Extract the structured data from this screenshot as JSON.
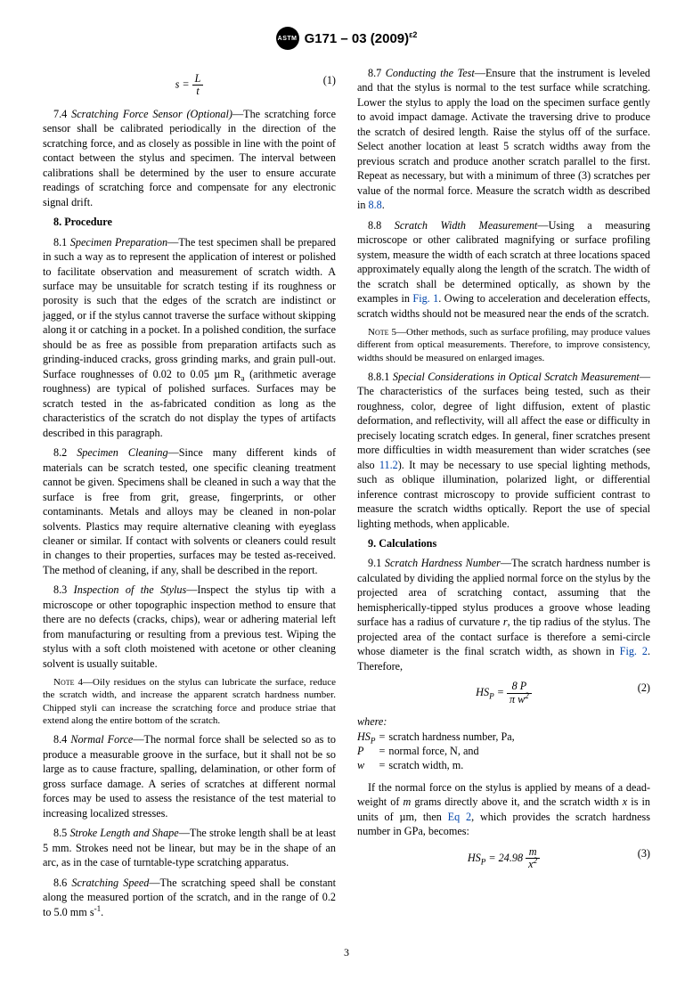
{
  "header": {
    "logo_text": "ASTM",
    "doc_id": "G171 – 03 (2009)",
    "doc_sup": "ε2"
  },
  "left": {
    "eq1": {
      "lhs": "s =",
      "num": "L",
      "den": "t",
      "num_label": "(1)"
    },
    "p74": {
      "num": "7.4",
      "title": "Scratching Force Sensor (Optional)",
      "body": "—The scratching force sensor shall be calibrated periodically in the direction of the scratching force, and as closely as possible in line with the point of contact between the stylus and specimen. The interval between calibrations shall be determined by the user to ensure accurate readings of scratching force and compensate for any electronic signal drift."
    },
    "s8": "8. Procedure",
    "p81": {
      "num": "8.1",
      "title": "Specimen Preparation",
      "body": "—The test specimen shall be prepared in such a way as to represent the application of interest or polished to facilitate observation and measurement of scratch width. A surface may be unsuitable for scratch testing if its roughness or porosity is such that the edges of the scratch are indistinct or jagged, or if the stylus cannot traverse the surface without skipping along it or catching in a pocket. In a polished condition, the surface should be as free as possible from preparation artifacts such as grinding-induced cracks, gross grinding marks, and grain pull-out. Surface roughnesses of 0.02 to 0.05 µm R",
      "sub": "a",
      "body2": " (arithmetic average roughness) are typical of polished surfaces. Surfaces may be scratch tested in the as-fabricated condition as long as the characteristics of the scratch do not display the types of artifacts described in this paragraph."
    },
    "p82": {
      "num": "8.2",
      "title": "Specimen Cleaning",
      "body": "—Since many different kinds of materials can be scratch tested, one specific cleaning treatment cannot be given. Specimens shall be cleaned in such a way that the surface is free from grit, grease, fingerprints, or other contaminants. Metals and alloys may be cleaned in non-polar solvents. Plastics may require alternative cleaning with eyeglass cleaner or similar. If contact with solvents or cleaners could result in changes to their properties, surfaces may be tested as-received. The method of cleaning, if any, shall be described in the report."
    },
    "p83": {
      "num": "8.3",
      "title": "Inspection of the Stylus",
      "body": "—Inspect the stylus tip with a microscope or other topographic inspection method to ensure that there are no defects (cracks, chips), wear or adhering material left from manufacturing or resulting from a previous test. Wiping the stylus with a soft cloth moistened with acetone or other cleaning solvent is usually suitable."
    },
    "note4": {
      "label": "Note 4—",
      "body": "Oily residues on the stylus can lubricate the surface, reduce the scratch width, and increase the apparent scratch hardness number. Chipped styli can increase the scratching force and produce striae that extend along the entire bottom of the scratch."
    },
    "p84": {
      "num": "8.4",
      "title": "Normal Force",
      "body": "—The normal force shall be selected so as to produce a measurable groove in the surface, but it shall not be so large as to cause fracture, spalling, delamination, or other form of gross surface damage. A series of scratches at different normal forces may be used to assess the resistance of the test material to increasing localized stresses."
    },
    "p85": {
      "num": "8.5",
      "title": "Stroke Length and Shape",
      "body": "—The stroke length shall be at least 5 mm. Strokes need not be linear, but may be in the shape of an arc, as in the case of turntable-type scratching apparatus."
    },
    "p86": {
      "num": "8.6",
      "title": "Scratching Speed",
      "body": "—The scratching speed shall be constant along the measured portion of the scratch, and in the range of 0.2 to 5.0 mm s",
      "sup": "-1",
      "body2": "."
    }
  },
  "right": {
    "p87": {
      "num": "8.7",
      "title": "Conducting the Test",
      "body": "—Ensure that the instrument is leveled and that the stylus is normal to the test surface while scratching. Lower the stylus to apply the load on the specimen surface gently to avoid impact damage. Activate the traversing drive to produce the scratch of desired length. Raise the stylus off of the surface. Select another location at least 5 scratch widths away from the previous scratch and produce another scratch parallel to the first. Repeat as necessary, but with a minimum of three (3) scratches per value of the normal force. Measure the scratch width as described in ",
      "link": "8.8",
      "body2": "."
    },
    "p88": {
      "num": "8.8",
      "title": "Scratch Width Measurement",
      "body": "—Using a measuring microscope or other calibrated magnifying or surface profiling system, measure the width of each scratch at three locations spaced approximately equally along the length of the scratch. The width of the scratch shall be determined optically, as shown by the examples in ",
      "link": "Fig. 1",
      "body2": ". Owing to acceleration and deceleration effects, scratch widths should not be measured near the ends of the scratch."
    },
    "note5": {
      "label": "Note 5—",
      "body": "Other methods, such as surface profiling, may produce values different from optical measurements. Therefore, to improve consistency, widths should be measured on enlarged images."
    },
    "p881": {
      "num": "8.8.1",
      "title": "Special Considerations in Optical Scratch Measurement",
      "body": "—The characteristics of the surfaces being tested, such as their roughness, color, degree of light diffusion, extent of plastic deformation, and reflectivity, will all affect the ease or difficulty in precisely locating scratch edges. In general, finer scratches present more difficulties in width measurement than wider scratches (see also ",
      "link": "11.2",
      "body2": "). It may be necessary to use special lighting methods, such as oblique illumination, polarized light, or differential inference contrast microscopy to provide sufficient contrast to measure the scratch widths optically. Report the use of special lighting methods, when applicable."
    },
    "s9": "9. Calculations",
    "p91": {
      "num": "9.1",
      "title": "Scratch Hardness Number",
      "body": "—The scratch hardness number is calculated by dividing the applied normal force on the stylus by the projected area of scratching contact, assuming that the hemispherically-tipped stylus produces a groove whose leading surface has a radius of curvature ",
      "ital": "r",
      "body2": ", the tip radius of the stylus. The projected area of the contact surface is therefore a semi-circle whose diameter is the final scratch width, as shown in ",
      "link": "Fig. 2",
      "body3": ". Therefore,"
    },
    "eq2": {
      "lhs": "HS",
      "sub": "P",
      "eq": " = ",
      "num": "8 P",
      "den": "π w",
      "densup": "2",
      "num_label": "(2)"
    },
    "where": {
      "label": "where:",
      "rows": [
        {
          "sym": "HS",
          "sub": "P",
          "def": "scratch hardness number, Pa,"
        },
        {
          "sym": "P",
          "def": "normal force, N, and"
        },
        {
          "sym": "w",
          "def": "scratch width, m."
        }
      ]
    },
    "p_after": {
      "body1": "If the normal force on the stylus is applied by means of a dead-weight of ",
      "m": "m",
      "body2": " grams directly above it, and the scratch width ",
      "x": "x",
      "body3": " is in units of µm, then ",
      "link": "Eq 2",
      "body4": ", which provides the scratch hardness number in GPa, becomes:"
    },
    "eq3": {
      "lhs": "HS",
      "sub": "P",
      "eq": " = 24.98 ",
      "num": "m",
      "den": "x",
      "densup": "2",
      "num_label": "(3)"
    }
  },
  "pagenum": "3"
}
